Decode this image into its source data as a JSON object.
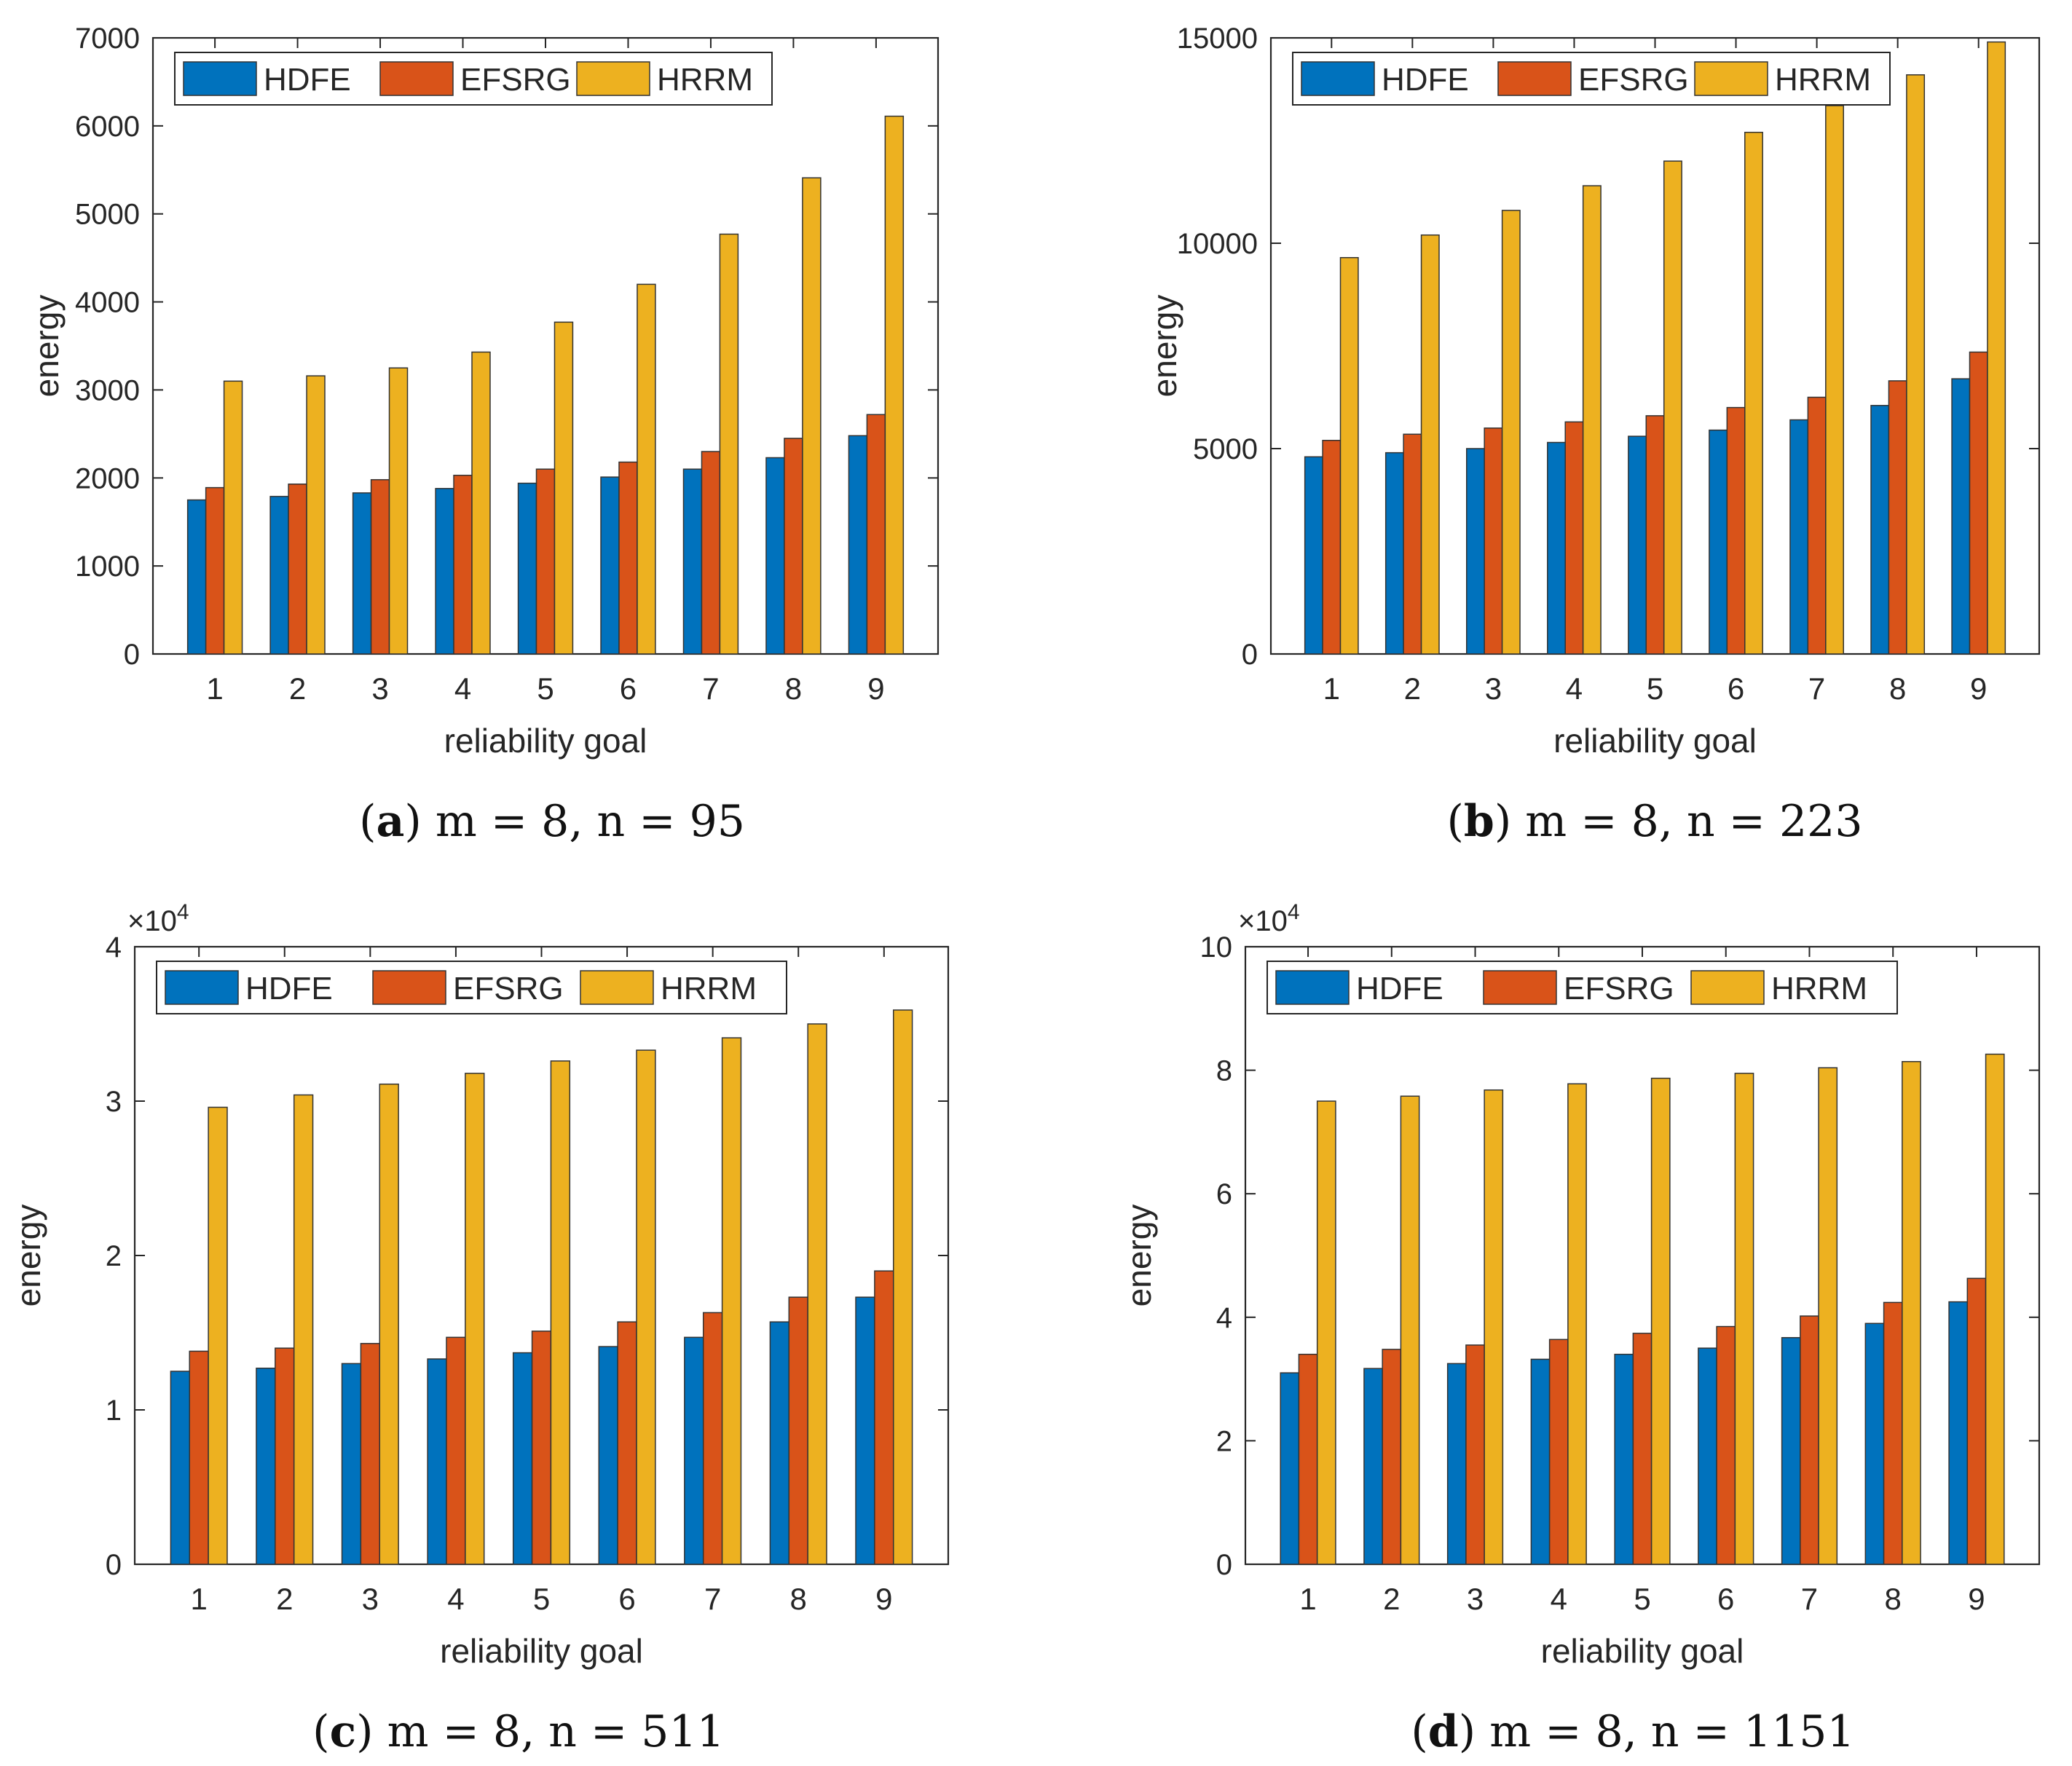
{
  "colors": {
    "HDFE": "#0072BD",
    "EFSRG": "#D95319",
    "HRRM": "#EDB120"
  },
  "chart_data": [
    {
      "type": "bar",
      "title": "",
      "caption_letter": "a",
      "caption_text": "m = 8, n = 95",
      "xlabel": "reliability goal",
      "ylabel": "energy",
      "categories": [
        "1",
        "2",
        "3",
        "4",
        "5",
        "6",
        "7",
        "8",
        "9"
      ],
      "ylim": [
        0,
        7000
      ],
      "yticks": [
        0,
        1000,
        2000,
        3000,
        4000,
        5000,
        6000,
        7000
      ],
      "ytick_labels": [
        "0",
        "1000",
        "2000",
        "3000",
        "4000",
        "5000",
        "6000",
        "7000"
      ],
      "exponent": "",
      "legend_position": "top-left",
      "series": [
        {
          "name": "HDFE",
          "values": [
            1750,
            1790,
            1830,
            1880,
            1940,
            2010,
            2100,
            2230,
            2480
          ]
        },
        {
          "name": "EFSRG",
          "values": [
            1890,
            1930,
            1980,
            2030,
            2100,
            2180,
            2300,
            2450,
            2720
          ]
        },
        {
          "name": "HRRM",
          "values": [
            3100,
            3160,
            3250,
            3430,
            3770,
            4200,
            4770,
            5410,
            6110
          ]
        }
      ]
    },
    {
      "type": "bar",
      "title": "",
      "caption_letter": "b",
      "caption_text": "m = 8, n = 223",
      "xlabel": "reliability goal",
      "ylabel": "energy",
      "categories": [
        "1",
        "2",
        "3",
        "4",
        "5",
        "6",
        "7",
        "8",
        "9"
      ],
      "ylim": [
        0,
        15000
      ],
      "yticks": [
        0,
        5000,
        10000,
        15000
      ],
      "ytick_labels": [
        "0",
        "5000",
        "10000",
        "15000"
      ],
      "exponent": "",
      "legend_position": "top-left",
      "series": [
        {
          "name": "HDFE",
          "values": [
            4800,
            4900,
            5000,
            5150,
            5300,
            5450,
            5700,
            6050,
            6700
          ]
        },
        {
          "name": "EFSRG",
          "values": [
            5200,
            5350,
            5500,
            5650,
            5800,
            6000,
            6250,
            6650,
            7350
          ]
        },
        {
          "name": "HRRM",
          "values": [
            9650,
            10200,
            10800,
            11400,
            12000,
            12700,
            13350,
            14100,
            14900
          ]
        }
      ]
    },
    {
      "type": "bar",
      "title": "",
      "caption_letter": "c",
      "caption_text": "m = 8, n = 511",
      "xlabel": "reliability goal",
      "ylabel": "energy",
      "categories": [
        "1",
        "2",
        "3",
        "4",
        "5",
        "6",
        "7",
        "8",
        "9"
      ],
      "ylim": [
        0,
        40000
      ],
      "yticks": [
        0,
        10000,
        20000,
        30000,
        40000
      ],
      "ytick_labels": [
        "0",
        "1",
        "2",
        "3",
        "4"
      ],
      "exponent": "×10",
      "exponent_power": "4",
      "legend_position": "top-left",
      "series": [
        {
          "name": "HDFE",
          "values": [
            12500,
            12700,
            13000,
            13300,
            13700,
            14100,
            14700,
            15700,
            17300
          ]
        },
        {
          "name": "EFSRG",
          "values": [
            13800,
            14000,
            14300,
            14700,
            15100,
            15700,
            16300,
            17300,
            19000
          ]
        },
        {
          "name": "HRRM",
          "values": [
            29600,
            30400,
            31100,
            31800,
            32600,
            33300,
            34100,
            35000,
            35900
          ]
        }
      ]
    },
    {
      "type": "bar",
      "title": "",
      "caption_letter": "d",
      "caption_text": "m = 8, n = 1151",
      "xlabel": "reliability goal",
      "ylabel": "energy",
      "categories": [
        "1",
        "2",
        "3",
        "4",
        "5",
        "6",
        "7",
        "8",
        "9"
      ],
      "ylim": [
        0,
        100000
      ],
      "yticks": [
        0,
        20000,
        40000,
        60000,
        80000,
        100000
      ],
      "ytick_labels": [
        "0",
        "2",
        "4",
        "6",
        "8",
        "10"
      ],
      "exponent": "×10",
      "exponent_power": "4",
      "legend_position": "top-left",
      "series": [
        {
          "name": "HDFE",
          "values": [
            31000,
            31700,
            32500,
            33200,
            34000,
            35000,
            36700,
            39000,
            42500
          ]
        },
        {
          "name": "EFSRG",
          "values": [
            34000,
            34800,
            35500,
            36400,
            37400,
            38500,
            40200,
            42400,
            46300
          ]
        },
        {
          "name": "HRRM",
          "values": [
            75000,
            75800,
            76800,
            77800,
            78700,
            79500,
            80400,
            81400,
            82600
          ]
        }
      ]
    }
  ]
}
